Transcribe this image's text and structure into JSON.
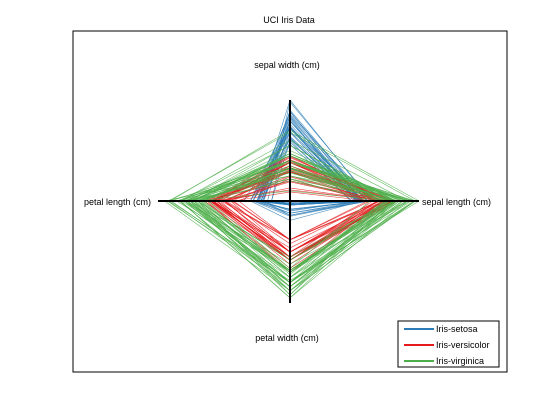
{
  "chart_data": {
    "type": "radar",
    "title": "UCI Iris Data",
    "axes": [
      "sepal length (cm)",
      "sepal width (cm)",
      "petal length (cm)",
      "petal width (cm)"
    ],
    "grid": false,
    "legend_position": "bottom-right",
    "series": [
      {
        "name": "Iris-setosa",
        "color": "#2c7bb6",
        "values": [
          [
            0.56,
            0.8,
            0.23,
            0.02
          ],
          [
            0.54,
            0.62,
            0.21,
            0.03
          ],
          [
            0.52,
            0.68,
            0.2,
            0.01
          ],
          [
            0.5,
            0.63,
            0.24,
            0.04
          ],
          [
            0.55,
            0.83,
            0.22,
            0.02
          ],
          [
            0.6,
            0.88,
            0.28,
            0.15
          ],
          [
            0.51,
            0.74,
            0.22,
            0.1
          ],
          [
            0.55,
            0.72,
            0.25,
            0.03
          ],
          [
            0.48,
            0.56,
            0.21,
            0.02
          ],
          [
            0.54,
            0.64,
            0.25,
            0.0
          ],
          [
            0.6,
            0.85,
            0.25,
            0.04
          ],
          [
            0.53,
            0.72,
            0.28,
            0.02
          ],
          [
            0.53,
            0.58,
            0.22,
            0.0
          ],
          [
            0.47,
            0.6,
            0.14,
            0.0
          ],
          [
            0.64,
            0.98,
            0.17,
            0.04
          ],
          [
            0.63,
            1.0,
            0.24,
            0.12
          ],
          [
            0.6,
            0.9,
            0.2,
            0.14
          ],
          [
            0.56,
            0.79,
            0.22,
            0.09
          ],
          [
            0.63,
            0.86,
            0.3,
            0.08
          ],
          [
            0.56,
            0.89,
            0.25,
            0.08
          ],
          [
            0.6,
            0.73,
            0.3,
            0.04
          ],
          [
            0.56,
            0.84,
            0.25,
            0.14
          ],
          [
            0.51,
            0.82,
            0.14,
            0.03
          ],
          [
            0.56,
            0.69,
            0.3,
            0.19
          ],
          [
            0.53,
            0.73,
            0.35,
            0.02
          ],
          [
            0.55,
            0.61,
            0.28,
            0.03
          ],
          [
            0.55,
            0.74,
            0.28,
            0.12
          ],
          [
            0.57,
            0.79,
            0.25,
            0.03
          ],
          [
            0.57,
            0.76,
            0.24,
            0.02
          ],
          [
            0.52,
            0.68,
            0.28,
            0.03
          ]
        ]
      },
      {
        "name": "Iris-versicolor",
        "color": "#e41a1c",
        "values": [
          [
            0.82,
            0.4,
            0.6,
            0.55
          ],
          [
            0.78,
            0.43,
            0.58,
            0.58
          ],
          [
            0.83,
            0.41,
            0.62,
            0.58
          ],
          [
            0.69,
            0.2,
            0.5,
            0.5
          ],
          [
            0.79,
            0.31,
            0.59,
            0.58
          ],
          [
            0.72,
            0.29,
            0.58,
            0.5
          ],
          [
            0.76,
            0.44,
            0.6,
            0.62
          ],
          [
            0.6,
            0.22,
            0.39,
            0.38
          ],
          [
            0.8,
            0.33,
            0.59,
            0.5
          ],
          [
            0.64,
            0.29,
            0.49,
            0.55
          ],
          [
            0.62,
            0.09,
            0.43,
            0.38
          ],
          [
            0.72,
            0.38,
            0.53,
            0.58
          ],
          [
            0.73,
            0.13,
            0.5,
            0.38
          ],
          [
            0.74,
            0.35,
            0.6,
            0.55
          ],
          [
            0.68,
            0.35,
            0.45,
            0.5
          ],
          [
            0.8,
            0.39,
            0.56,
            0.55
          ],
          [
            0.68,
            0.38,
            0.58,
            0.58
          ],
          [
            0.7,
            0.25,
            0.52,
            0.38
          ],
          [
            0.75,
            0.11,
            0.58,
            0.58
          ],
          [
            0.68,
            0.19,
            0.48,
            0.42
          ],
          [
            0.71,
            0.45,
            0.63,
            0.7
          ],
          [
            0.74,
            0.3,
            0.5,
            0.5
          ],
          [
            0.76,
            0.2,
            0.65,
            0.58
          ],
          [
            0.74,
            0.3,
            0.6,
            0.46
          ],
          [
            0.77,
            0.33,
            0.55,
            0.5
          ],
          [
            0.79,
            0.38,
            0.56,
            0.55
          ],
          [
            0.82,
            0.29,
            0.61,
            0.55
          ],
          [
            0.81,
            0.38,
            0.65,
            0.66
          ],
          [
            0.72,
            0.33,
            0.58,
            0.58
          ],
          [
            0.7,
            0.24,
            0.44,
            0.38
          ]
        ]
      },
      {
        "name": "Iris-virginica",
        "color": "#4daf4a",
        "values": [
          [
            0.82,
            0.55,
            0.83,
            0.95
          ],
          [
            0.74,
            0.28,
            0.73,
            0.72
          ],
          [
            0.9,
            0.4,
            0.8,
            0.8
          ],
          [
            0.8,
            0.35,
            0.78,
            0.68
          ],
          [
            0.83,
            0.4,
            0.8,
            0.84
          ],
          [
            0.96,
            0.4,
            0.9,
            0.8
          ],
          [
            0.62,
            0.22,
            0.62,
            0.66
          ],
          [
            0.93,
            0.38,
            0.86,
            0.68
          ],
          [
            0.85,
            0.22,
            0.8,
            0.68
          ],
          [
            0.91,
            0.6,
            0.83,
            0.95
          ],
          [
            0.83,
            0.47,
            0.7,
            0.75
          ],
          [
            0.82,
            0.28,
            0.72,
            0.7
          ],
          [
            0.87,
            0.4,
            0.75,
            0.8
          ],
          [
            0.73,
            0.2,
            0.7,
            0.75
          ],
          [
            0.74,
            0.3,
            0.7,
            0.92
          ],
          [
            0.8,
            0.47,
            0.73,
            0.88
          ],
          [
            0.82,
            0.4,
            0.75,
            0.68
          ],
          [
            0.97,
            0.68,
            0.92,
            0.84
          ],
          [
            0.97,
            0.25,
            0.95,
            0.88
          ],
          [
            0.76,
            0.1,
            0.7,
            0.58
          ],
          [
            0.88,
            0.47,
            0.78,
            0.88
          ],
          [
            0.71,
            0.33,
            0.68,
            0.8
          ],
          [
            0.97,
            0.33,
            0.93,
            0.8
          ],
          [
            0.8,
            0.3,
            0.68,
            0.7
          ],
          [
            0.85,
            0.5,
            0.78,
            0.8
          ],
          [
            0.91,
            0.45,
            0.82,
            0.7
          ],
          [
            0.78,
            0.32,
            0.66,
            0.7
          ],
          [
            0.77,
            0.4,
            0.67,
            0.7
          ],
          [
            0.81,
            0.32,
            0.76,
            0.8
          ],
          [
            0.91,
            0.4,
            0.8,
            0.62
          ],
          [
            0.94,
            0.32,
            0.84,
            0.75
          ],
          [
            1.0,
            0.7,
            0.91,
            0.78
          ],
          [
            0.81,
            0.32,
            0.76,
            0.84
          ],
          [
            0.8,
            0.32,
            0.7,
            0.58
          ],
          [
            0.77,
            0.25,
            0.76,
            0.55
          ],
          [
            0.97,
            0.4,
            0.84,
            0.88
          ],
          [
            0.8,
            0.55,
            0.76,
            0.92
          ],
          [
            0.81,
            0.45,
            0.75,
            0.68
          ],
          [
            0.76,
            0.4,
            0.65,
            0.68
          ],
          [
            0.87,
            0.45,
            0.73,
            0.84
          ]
        ]
      }
    ]
  }
}
